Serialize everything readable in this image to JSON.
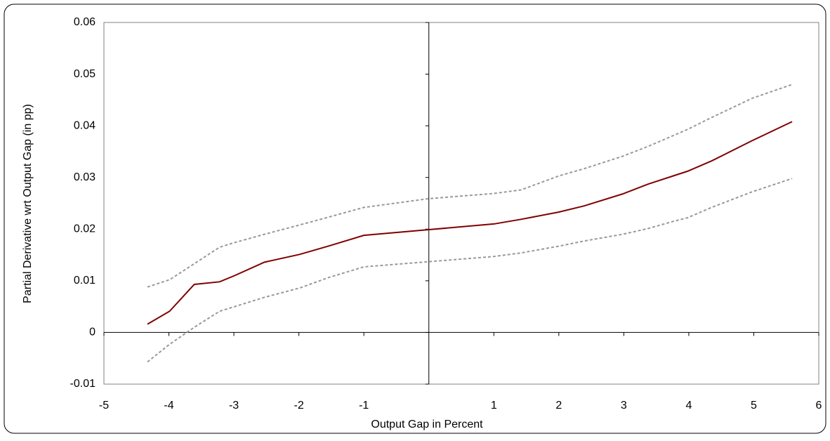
{
  "chart_data": {
    "type": "line",
    "x_label": "Output Gap in Percent",
    "y_label": "Partial Derivative wrt Output Gap (in pp)",
    "x": [
      -4.33,
      -3.99,
      -3.61,
      -3.22,
      -2.99,
      -2.53,
      -1.99,
      -1.55,
      -1.0,
      0,
      1.0,
      1.42,
      2.0,
      2.39,
      2.98,
      3.37,
      3.76,
      3.98,
      4.35,
      4.97,
      5.59
    ],
    "series": [
      {
        "color": "#800000",
        "dashed": false,
        "values": [
          0.0016,
          0.0041,
          0.0093,
          0.0098,
          0.011,
          0.0136,
          0.0151,
          0.0167,
          0.0188,
          0.0199,
          0.021,
          0.0219,
          0.0233,
          0.0245,
          0.0268,
          0.0287,
          0.0303,
          0.0312,
          0.0332,
          0.0371,
          0.0408
        ]
      },
      {
        "color": "#999999",
        "dashed": true,
        "values": [
          0.0088,
          0.0102,
          0.0133,
          0.0165,
          0.0174,
          0.019,
          0.0208,
          0.0223,
          0.0242,
          0.0259,
          0.0269,
          0.0276,
          0.0303,
          0.0317,
          0.0341,
          0.036,
          0.0381,
          0.0393,
          0.0416,
          0.0453,
          0.048
        ]
      },
      {
        "color": "#999999",
        "dashed": true,
        "values": [
          -0.0057,
          -0.0023,
          0.001,
          0.0041,
          0.005,
          0.0068,
          0.0086,
          0.0106,
          0.0127,
          0.0137,
          0.0147,
          0.0154,
          0.0167,
          0.0177,
          0.019,
          0.0201,
          0.0215,
          0.0222,
          0.0242,
          0.0272,
          0.0298
        ]
      }
    ],
    "xlim": [
      -5,
      6
    ],
    "xticks": [
      -5,
      -4,
      -3,
      -2,
      -1,
      1,
      2,
      3,
      4,
      5,
      6
    ],
    "ylim": [
      -0.01,
      0.06
    ],
    "yticks": [
      -0.01,
      0,
      0.01,
      0.02,
      0.03,
      0.04,
      0.05,
      0.06
    ],
    "grid": false
  }
}
